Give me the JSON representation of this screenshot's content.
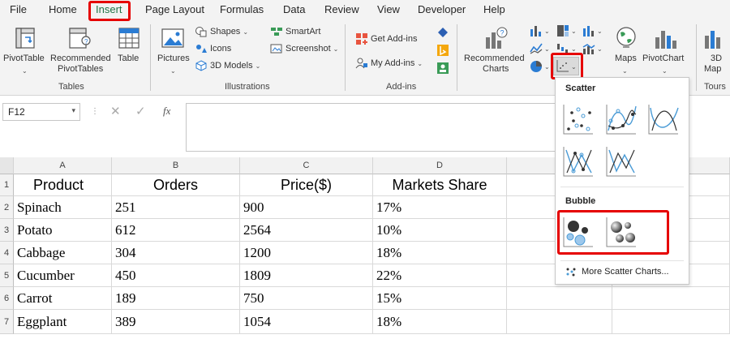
{
  "menu": {
    "items": [
      "File",
      "Home",
      "Insert",
      "Page Layout",
      "Formulas",
      "Data",
      "Review",
      "View",
      "Developer",
      "Help"
    ],
    "active": "Insert"
  },
  "ribbon": {
    "tables": {
      "pivottable": {
        "label": "PivotTable",
        "icon": "pivottable-icon"
      },
      "recommended_pivot": {
        "label_line1": "Recommended",
        "label_line2": "PivotTables",
        "icon": "recommended-pivottables-icon"
      },
      "table": {
        "label": "Table",
        "icon": "table-icon"
      },
      "group_label": "Tables"
    },
    "illustrations": {
      "pictures": {
        "label": "Pictures",
        "icon": "pictures-icon"
      },
      "shapes": "Shapes",
      "icons": "Icons",
      "models": "3D Models",
      "smartart": "SmartArt",
      "screenshot": "Screenshot",
      "group_label": "Illustrations"
    },
    "addins": {
      "get": "Get Add-ins",
      "my": "My Add-ins",
      "group_label": "Add-ins"
    },
    "charts": {
      "recommended_line1": "Recommended",
      "recommended_line2": "Charts",
      "maps": "Maps",
      "pivotchart": "PivotChart"
    },
    "tours": {
      "map_line1": "3D",
      "map_line2": "Map",
      "group_label": "Tours"
    }
  },
  "formula_bar": {
    "name_box": "F12",
    "fx": "fx",
    "formula": ""
  },
  "sheet": {
    "columns": [
      "A",
      "B",
      "C",
      "D",
      "E",
      "F"
    ],
    "rows": [
      "1",
      "2",
      "3",
      "4",
      "5",
      "6",
      "7"
    ],
    "header": [
      "Product",
      "Orders",
      "Price($)",
      "Markets Share"
    ],
    "data": [
      [
        "Spinach",
        "251",
        "900",
        "17%"
      ],
      [
        "Potato",
        "612",
        "2564",
        "10%"
      ],
      [
        "Cabbage",
        "304",
        "1200",
        "18%"
      ],
      [
        "Cucumber",
        "450",
        "1809",
        "22%"
      ],
      [
        "Carrot",
        "189",
        "750",
        "15%"
      ],
      [
        "Eggplant",
        "389",
        "1054",
        "18%"
      ]
    ]
  },
  "dropdown": {
    "scatter_heading": "Scatter",
    "bubble_heading": "Bubble",
    "more": "More Scatter Charts..."
  },
  "colors": {
    "highlight": "#e60000",
    "excel_green": "#217346",
    "chart_blue": "#4a9bd6"
  }
}
